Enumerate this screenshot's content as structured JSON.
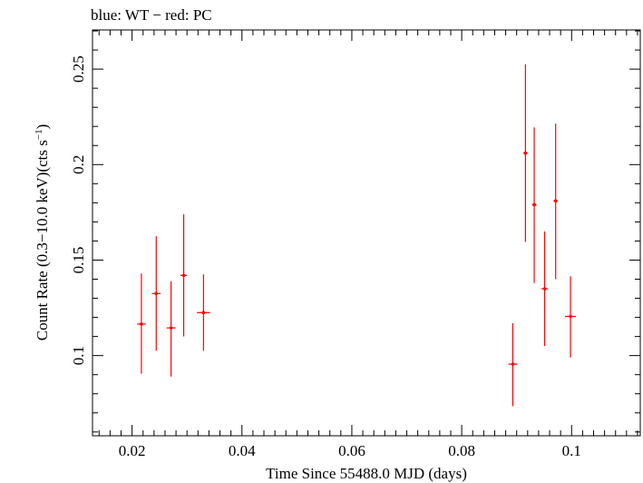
{
  "chart_data": {
    "type": "scatter",
    "title": "blue: WT − red: PC",
    "xlabel": "Time Since 55488.0 MJD (days)",
    "ylabel_main": "Count Rate (0.3−10.0 keV)(cts s",
    "ylabel_sup": "−1",
    "ylabel_close": ")",
    "xlim": [
      0.0128,
      0.1125
    ],
    "ylim": [
      0.058,
      0.2705
    ],
    "x_ticks": [
      0.02,
      0.04,
      0.06,
      0.08,
      0.1
    ],
    "x_tick_labels": [
      "0.02",
      "0.04",
      "0.06",
      "0.08",
      "0.1"
    ],
    "y_ticks": [
      0.1,
      0.15,
      0.2,
      0.25
    ],
    "y_tick_labels": [
      "0.1",
      "0.15",
      "0.2",
      "0.25"
    ],
    "series": [
      {
        "name": "PC",
        "color": "#ff0000",
        "points": [
          {
            "x": 0.0217,
            "xerr": 0.0008,
            "y": 0.1165,
            "ylo": 0.0905,
            "yhi": 0.143
          },
          {
            "x": 0.0244,
            "xerr": 0.0008,
            "y": 0.1325,
            "ylo": 0.1025,
            "yhi": 0.1625
          },
          {
            "x": 0.0271,
            "xerr": 0.0008,
            "y": 0.1145,
            "ylo": 0.089,
            "yhi": 0.139
          },
          {
            "x": 0.0294,
            "xerr": 0.0006,
            "y": 0.142,
            "ylo": 0.11,
            "yhi": 0.174
          },
          {
            "x": 0.033,
            "xerr": 0.0012,
            "y": 0.1225,
            "ylo": 0.1025,
            "yhi": 0.1425
          },
          {
            "x": 0.0893,
            "xerr": 0.0008,
            "y": 0.0955,
            "ylo": 0.0735,
            "yhi": 0.117
          },
          {
            "x": 0.0916,
            "xerr": 0.0004,
            "y": 0.206,
            "ylo": 0.1595,
            "yhi": 0.2525
          },
          {
            "x": 0.0932,
            "xerr": 0.0004,
            "y": 0.179,
            "ylo": 0.138,
            "yhi": 0.2195
          },
          {
            "x": 0.0951,
            "xerr": 0.0006,
            "y": 0.135,
            "ylo": 0.105,
            "yhi": 0.165
          },
          {
            "x": 0.0971,
            "xerr": 0.0004,
            "y": 0.181,
            "ylo": 0.14,
            "yhi": 0.2215
          },
          {
            "x": 0.0998,
            "xerr": 0.001,
            "y": 0.1205,
            "ylo": 0.099,
            "yhi": 0.1415
          }
        ]
      }
    ]
  }
}
